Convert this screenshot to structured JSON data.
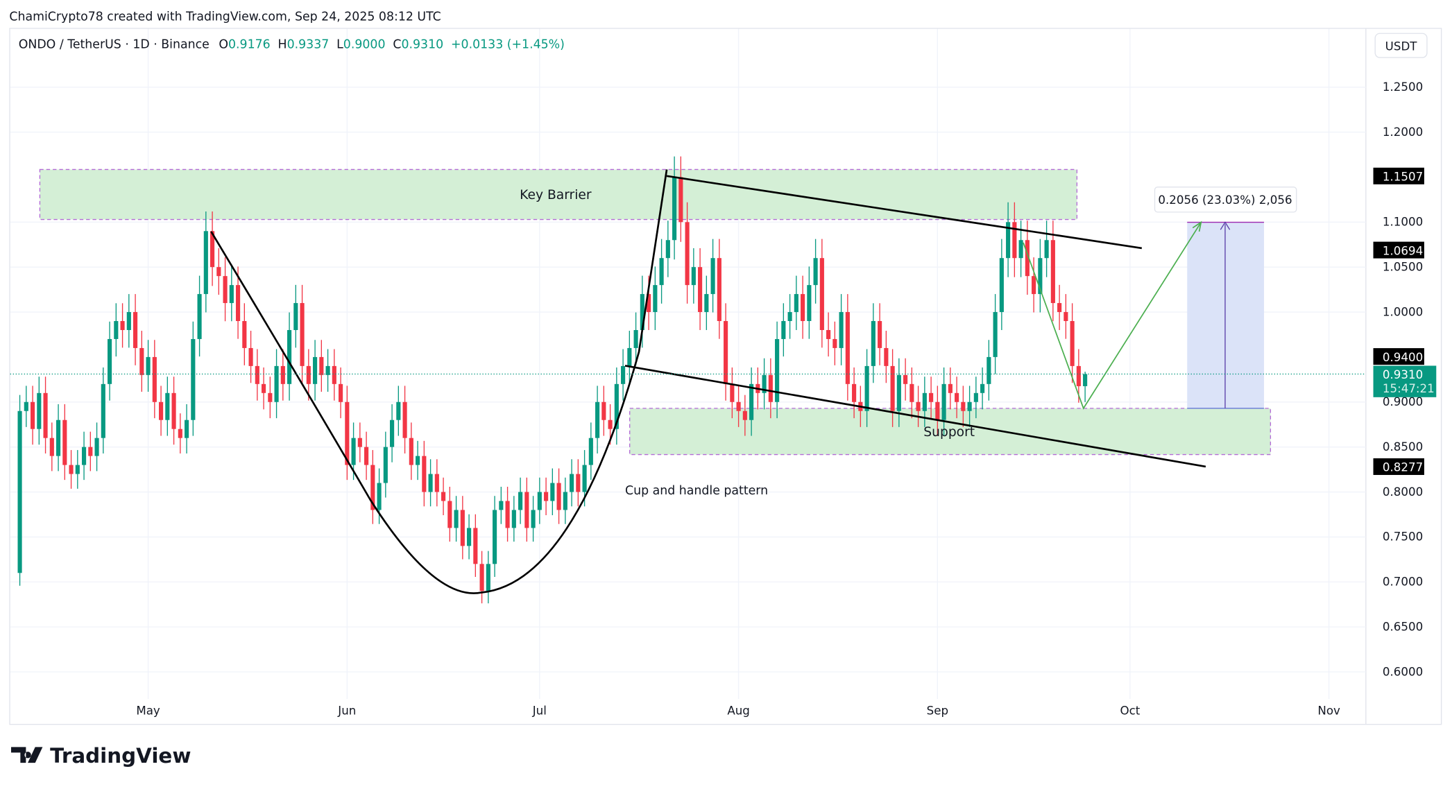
{
  "header": {
    "attribution": "ChamiCrypto78 created with TradingView.com, Sep 24, 2025 08:12 UTC"
  },
  "legend": {
    "symbol": "ONDO / TetherUS · 1D · Binance",
    "o_label": "O",
    "o": "0.9176",
    "h_label": "H",
    "h": "0.9337",
    "l_label": "L",
    "l": "0.9000",
    "c_label": "C",
    "c": "0.9310",
    "change": "+0.0133 (+1.45%)"
  },
  "currency_button": "USDT",
  "annotations": {
    "key_barrier": "Key Barrier",
    "support": "Support",
    "pattern": "Cup and handle pattern",
    "measure": "0.2056 (23.03%) 2,056"
  },
  "price_badges": {
    "b1": "1.1507",
    "b2": "1.0694",
    "b3": "0.9400",
    "b4": "0.8277",
    "last": "0.9310",
    "countdown": "15:47:21"
  },
  "logo": "TradingView",
  "colors": {
    "up": "#089981",
    "down": "#f23645",
    "zone": "#d4efd6",
    "projection": "#dbe3f8",
    "badge": "#000000"
  },
  "chart_data": {
    "type": "candlestick",
    "start_date": "2025-04-11",
    "end_date": "2025-09-24",
    "y_ticks": [
      "1.2500",
      "1.2000",
      "1.1000",
      "1.0500",
      "1.0000",
      "0.9000",
      "0.8500",
      "0.8000",
      "0.7500",
      "0.7000",
      "0.6500",
      "0.6000"
    ],
    "x_ticks": [
      "May",
      "Jun",
      "Jul",
      "Aug",
      "Sep",
      "Oct",
      "Nov"
    ],
    "ylim": [
      0.58,
      1.29
    ],
    "first_open": 0.71,
    "last_candle": {
      "open": 0.9176,
      "high": 0.9337,
      "low": 0.9,
      "close": 0.931
    },
    "closes": [
      0.89,
      0.9,
      0.87,
      0.91,
      0.86,
      0.84,
      0.88,
      0.83,
      0.82,
      0.83,
      0.85,
      0.84,
      0.86,
      0.92,
      0.97,
      0.99,
      0.98,
      1.0,
      0.96,
      0.93,
      0.95,
      0.9,
      0.88,
      0.91,
      0.87,
      0.86,
      0.88,
      0.97,
      1.02,
      1.09,
      1.05,
      1.04,
      1.01,
      1.03,
      0.99,
      0.96,
      0.94,
      0.92,
      0.91,
      0.9,
      0.94,
      0.92,
      0.98,
      1.01,
      0.94,
      0.92,
      0.95,
      0.93,
      0.94,
      0.92,
      0.9,
      0.83,
      0.86,
      0.85,
      0.83,
      0.78,
      0.81,
      0.85,
      0.88,
      0.9,
      0.86,
      0.83,
      0.84,
      0.8,
      0.82,
      0.8,
      0.79,
      0.76,
      0.78,
      0.74,
      0.76,
      0.72,
      0.69,
      0.72,
      0.78,
      0.79,
      0.76,
      0.78,
      0.8,
      0.76,
      0.78,
      0.8,
      0.79,
      0.81,
      0.78,
      0.8,
      0.82,
      0.8,
      0.83,
      0.86,
      0.9,
      0.88,
      0.87,
      0.92,
      0.94,
      0.96,
      0.98,
      1.02,
      1.0,
      1.03,
      1.06,
      1.08,
      1.15,
      1.1,
      1.03,
      1.05,
      1.0,
      1.02,
      1.06,
      0.99,
      0.92,
      0.9,
      0.89,
      0.88,
      0.92,
      0.91,
      0.93,
      0.9,
      0.97,
      0.99,
      1.0,
      1.02,
      0.99,
      1.03,
      1.06,
      0.98,
      0.97,
      0.96,
      1.0,
      0.92,
      0.9,
      0.89,
      0.94,
      0.99,
      0.96,
      0.94,
      0.89,
      0.93,
      0.92,
      0.9,
      0.89,
      0.91,
      0.9,
      0.88,
      0.92,
      0.91,
      0.9,
      0.89,
      0.9,
      0.91,
      0.92,
      0.95,
      1.0,
      1.06,
      1.1,
      1.06,
      1.08,
      1.04,
      1.02,
      1.06,
      1.08,
      1.01,
      1.0,
      0.99,
      0.94,
      0.9176,
      0.931
    ]
  }
}
